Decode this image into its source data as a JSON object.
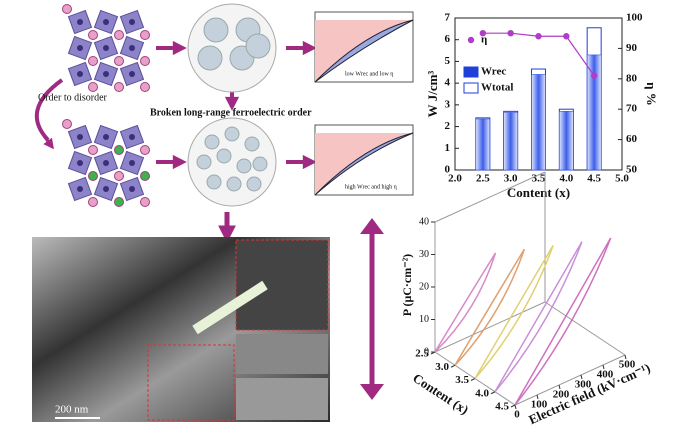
{
  "labels": {
    "order": "Order to disorder",
    "broken": "Broken long-range ferroelectric order",
    "low": "low Wrec and low η",
    "high": "high Wrec and high η",
    "scale": "200 nm"
  },
  "chart_data": [
    {
      "type": "bar",
      "x": [
        2.5,
        3.0,
        3.5,
        4.0,
        4.5
      ],
      "xlabel": "Content (x)",
      "ylabel": "W J/cm³",
      "y2label": "η %",
      "series": [
        {
          "name": "Wtotal",
          "color": "#1f3fd8",
          "values": [
            2.4,
            2.7,
            4.65,
            2.8,
            6.55
          ]
        },
        {
          "name": "Wrec",
          "color": "#1f3fd8",
          "values": [
            2.35,
            2.65,
            4.4,
            2.7,
            5.3
          ]
        },
        {
          "name": "η",
          "color": "#b03cc8",
          "axis": "y2",
          "values": [
            95,
            95,
            94,
            94,
            81
          ]
        }
      ],
      "xlim": [
        2,
        5
      ],
      "xticks": [
        {
          "value": 2,
          "label": "2.0"
        },
        {
          "value": 2.5,
          "label": "2.5"
        },
        {
          "value": 3,
          "label": "3.0"
        },
        {
          "value": 3.5,
          "label": "3.5"
        },
        {
          "value": 4,
          "label": "4.0"
        },
        {
          "value": 4.5,
          "label": "4.5"
        },
        {
          "value": 5,
          "label": "5.0"
        }
      ],
      "ylim": [
        0,
        7
      ],
      "yticks": [
        0,
        1,
        2,
        3,
        4,
        5,
        6,
        7
      ],
      "y2lim": [
        50,
        100
      ],
      "y2ticks": [
        50,
        60,
        70,
        80,
        90,
        100
      ]
    },
    {
      "type": "surface3d",
      "zlabel": "P (μC·cm⁻²)",
      "xlabel": "Content (x)",
      "ylabel": "Electric field (kV·cm⁻¹)",
      "zlim": [
        0,
        40
      ],
      "zticks": [
        0,
        10,
        20,
        30,
        40
      ],
      "xlim": [
        2.5,
        4.5
      ],
      "xticks": [
        {
          "value": 2.5,
          "label": "2.5"
        },
        {
          "value": 3,
          "label": "3.0"
        },
        {
          "value": 3.5,
          "label": "3.5"
        },
        {
          "value": 4,
          "label": "4.0"
        },
        {
          "value": 4.5,
          "label": "4.5"
        }
      ],
      "ylim": [
        0,
        500
      ],
      "yticks": [
        0,
        100,
        200,
        300,
        400,
        500
      ]
    }
  ]
}
